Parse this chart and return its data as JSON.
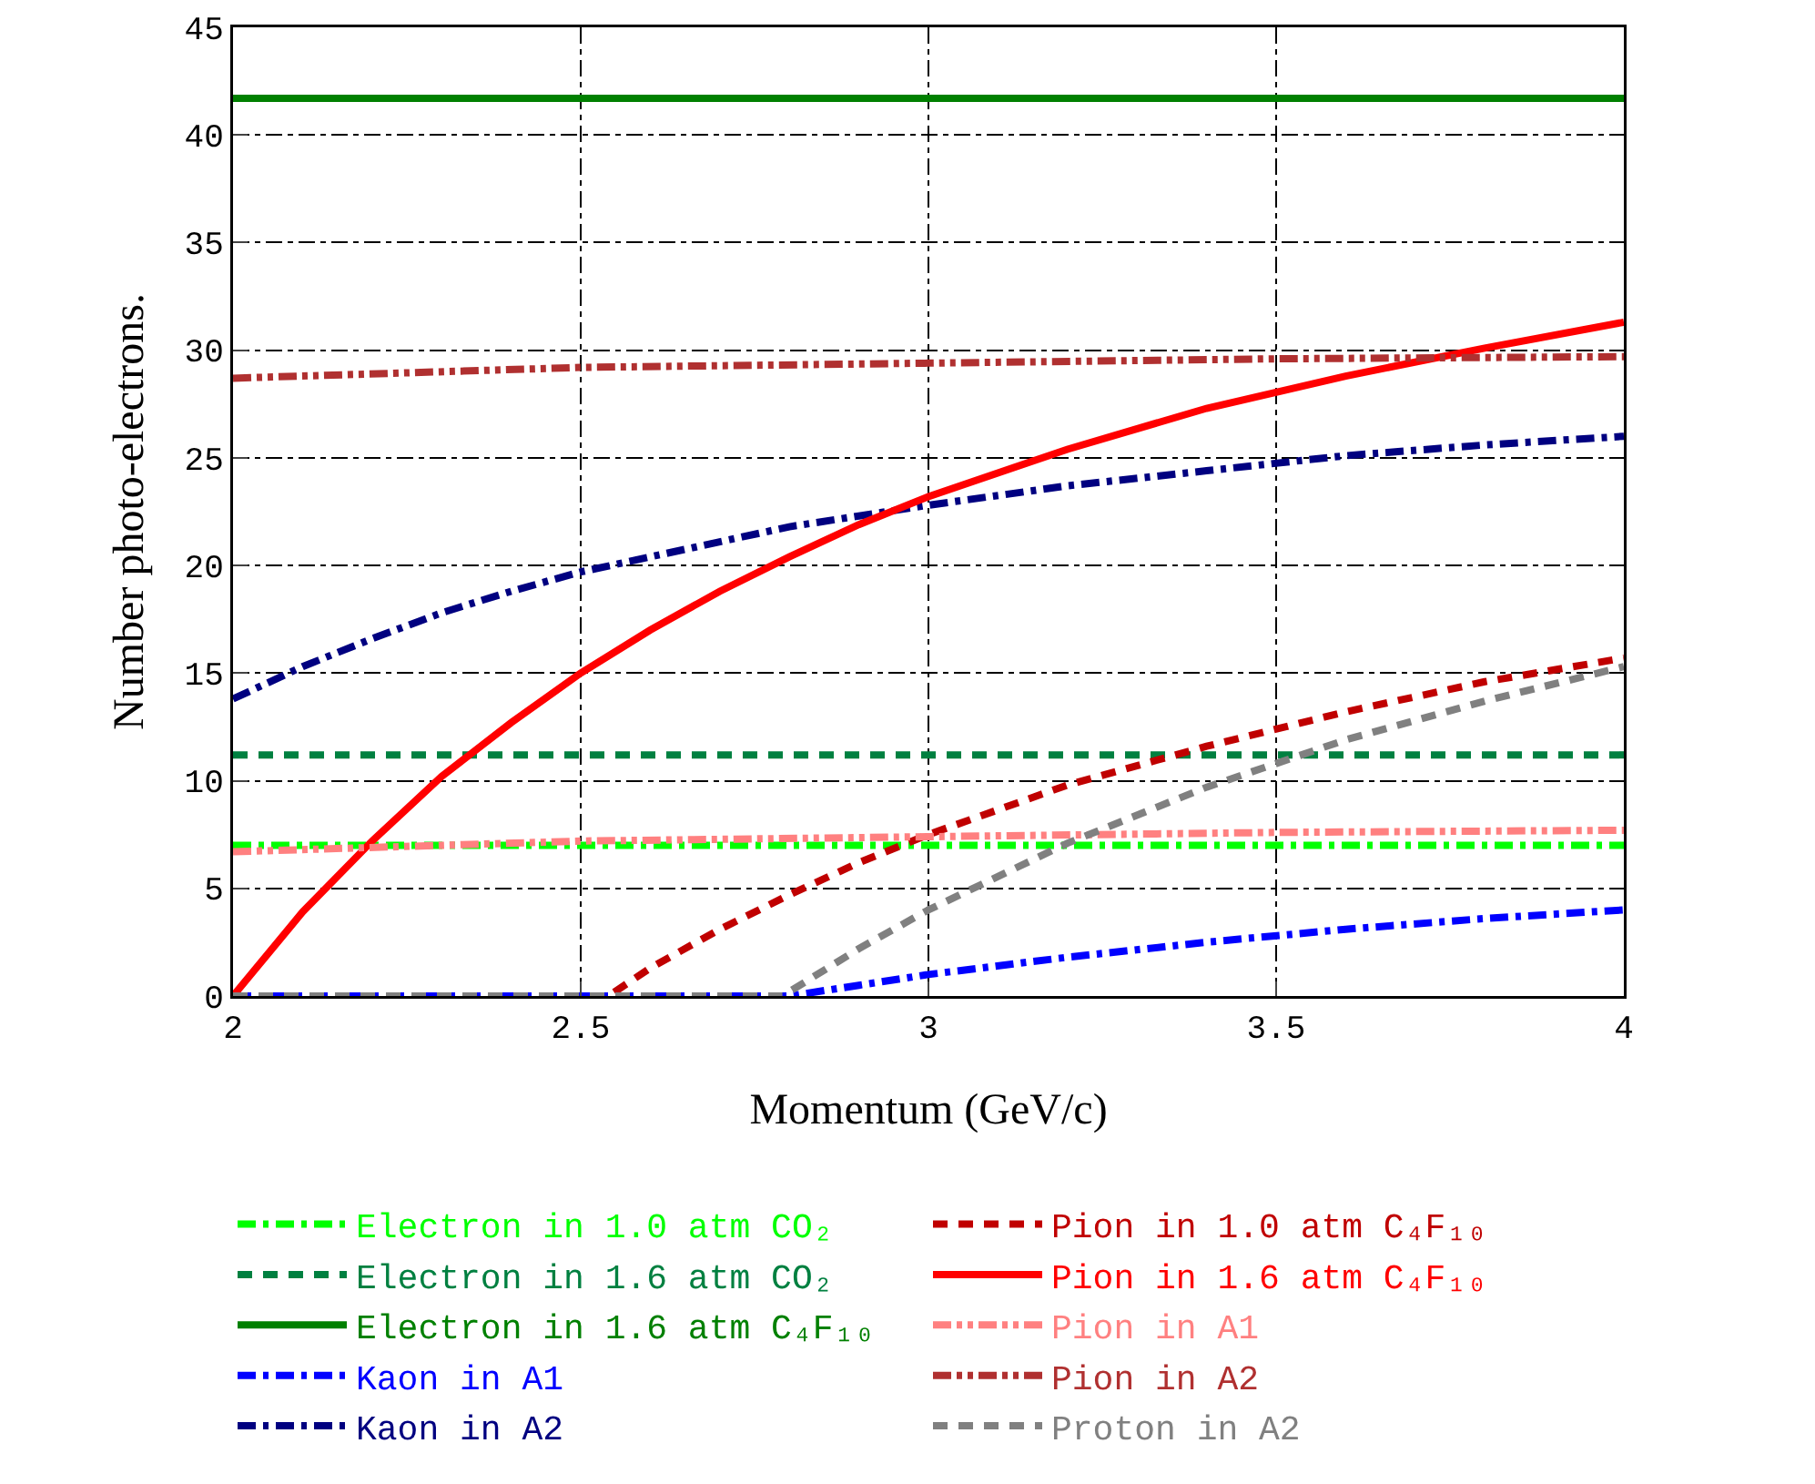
{
  "chart_data": {
    "type": "line",
    "xlabel": "Momentum (GeV/c)",
    "ylabel": "Number photo-electrons.",
    "xlim": [
      2,
      4
    ],
    "ylim": [
      0,
      45
    ],
    "xticks": [
      2,
      2.5,
      3,
      3.5,
      4
    ],
    "yticks": [
      0,
      5,
      10,
      15,
      20,
      25,
      30,
      35,
      40,
      45
    ],
    "grid": true,
    "legend": "bottom",
    "marker": "none",
    "series": [
      {
        "name": "Electron in 1.0 atm CO₂",
        "color": "#00ff00",
        "line_style": "dashdot",
        "x": [
          2,
          4
        ],
        "values": [
          7.0,
          7.0
        ]
      },
      {
        "name": "Electron in 1.6 atm CO₂",
        "color": "#008040",
        "line_style": "dashed",
        "x": [
          2,
          4
        ],
        "values": [
          11.2,
          11.2
        ]
      },
      {
        "name": "Electron in 1.6 atm C₄F₁₀",
        "color": "#008000",
        "line_style": "solid",
        "x": [
          2,
          4
        ],
        "values": [
          41.7,
          41.7
        ]
      },
      {
        "name": "Kaon in A1",
        "color": "#0000ff",
        "line_style": "dashdot",
        "x": [
          2,
          2.8,
          2.9,
          3.0,
          3.2,
          3.4,
          3.6,
          3.8,
          4.0
        ],
        "values": [
          0,
          0,
          0.5,
          1.0,
          1.8,
          2.5,
          3.1,
          3.6,
          4.0
        ]
      },
      {
        "name": "Kaon in A2",
        "color": "#000080",
        "line_style": "dashdot",
        "x": [
          2,
          2.1,
          2.2,
          2.3,
          2.4,
          2.5,
          2.6,
          2.7,
          2.8,
          2.9,
          3.0,
          3.2,
          3.4,
          3.6,
          3.8,
          4.0
        ],
        "values": [
          13.8,
          15.3,
          16.6,
          17.8,
          18.8,
          19.7,
          20.4,
          21.1,
          21.8,
          22.3,
          22.8,
          23.7,
          24.4,
          25.1,
          25.6,
          26.0
        ]
      },
      {
        "name": "Pion in 1.0 atm C₄F₁₀",
        "color": "#c00000",
        "line_style": "dashed",
        "x": [
          2,
          2.54,
          2.6,
          2.7,
          2.8,
          2.9,
          3.0,
          3.2,
          3.4,
          3.6,
          3.8,
          4.0
        ],
        "values": [
          0,
          0,
          1.3,
          3.1,
          4.7,
          6.2,
          7.5,
          9.8,
          11.6,
          13.2,
          14.6,
          15.7
        ]
      },
      {
        "name": "Pion in 1.6 atm C₄F₁₀",
        "color": "#ff0000",
        "line_style": "solid",
        "x": [
          2,
          2.1,
          2.2,
          2.3,
          2.4,
          2.5,
          2.6,
          2.7,
          2.8,
          2.9,
          3.0,
          3.2,
          3.4,
          3.6,
          3.8,
          4.0
        ],
        "values": [
          0,
          3.9,
          7.2,
          10.2,
          12.7,
          15.0,
          17.0,
          18.8,
          20.4,
          21.9,
          23.2,
          25.4,
          27.3,
          28.8,
          30.1,
          31.3
        ]
      },
      {
        "name": "Pion in A1",
        "color": "#ff8080",
        "line_style": "dashdotdot",
        "x": [
          2,
          2.5,
          3,
          3.5,
          4
        ],
        "values": [
          6.7,
          7.2,
          7.4,
          7.6,
          7.7
        ]
      },
      {
        "name": "Pion in A2",
        "color": "#b03030",
        "line_style": "dashdotdot",
        "x": [
          2,
          2.5,
          3,
          3.5,
          4
        ],
        "values": [
          28.7,
          29.2,
          29.4,
          29.6,
          29.7
        ]
      },
      {
        "name": "Proton in A2",
        "color": "#808080",
        "line_style": "dashed",
        "x": [
          2,
          2.79,
          2.8,
          2.9,
          3.0,
          3.2,
          3.4,
          3.6,
          3.8,
          4.0
        ],
        "values": [
          0,
          0,
          0.2,
          2.2,
          4.0,
          7.1,
          9.7,
          11.9,
          13.7,
          15.3
        ]
      }
    ]
  }
}
